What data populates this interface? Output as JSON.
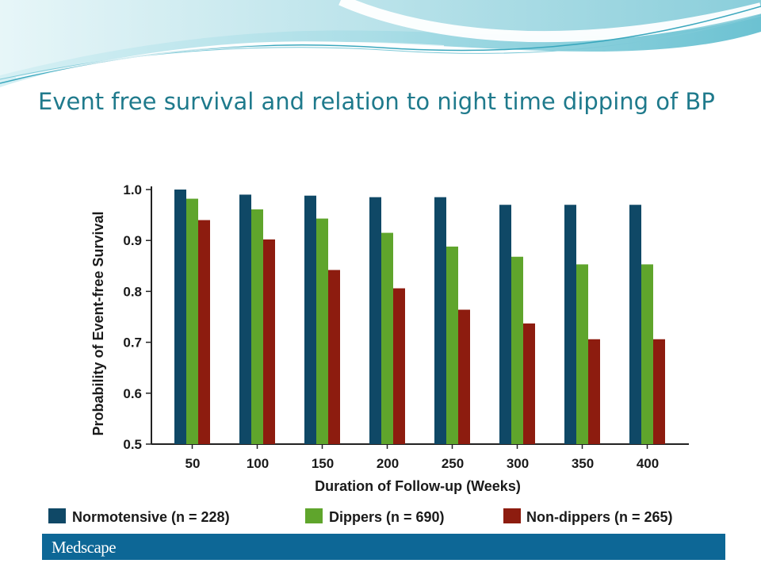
{
  "slide": {
    "title": "Event free survival and relation to night time dipping of BP"
  },
  "source": {
    "logo_text": "Medscape"
  },
  "colors": {
    "normotensive": "#0f4866",
    "dippers": "#5fa52c",
    "non_dippers": "#8d1c0f",
    "title": "#1f7a8c",
    "source_bar": "#0d6796"
  },
  "chart_data": {
    "type": "bar",
    "title": "",
    "xlabel": "Duration of Follow-up (Weeks)",
    "ylabel": "Probability of Event-free Survival",
    "categories": [
      "50",
      "100",
      "150",
      "200",
      "250",
      "300",
      "350",
      "400"
    ],
    "ylim": [
      0.5,
      1.0
    ],
    "yticks": [
      "0.5",
      "0.6",
      "0.7",
      "0.8",
      "0.9",
      "1.0"
    ],
    "grid": false,
    "legend_position": "bottom",
    "series": [
      {
        "name": "Normotensive (n = 228)",
        "color_key": "normotensive",
        "values": [
          1.0,
          0.99,
          0.988,
          0.985,
          0.985,
          0.97,
          0.97,
          0.97
        ]
      },
      {
        "name": "Dippers (n = 690)",
        "color_key": "dippers",
        "values": [
          0.982,
          0.961,
          0.943,
          0.915,
          0.888,
          0.868,
          0.853,
          0.853
        ]
      },
      {
        "name": "Non-dippers (n = 265)",
        "color_key": "non_dippers",
        "values": [
          0.94,
          0.902,
          0.842,
          0.806,
          0.764,
          0.737,
          0.706,
          0.706
        ]
      }
    ]
  }
}
